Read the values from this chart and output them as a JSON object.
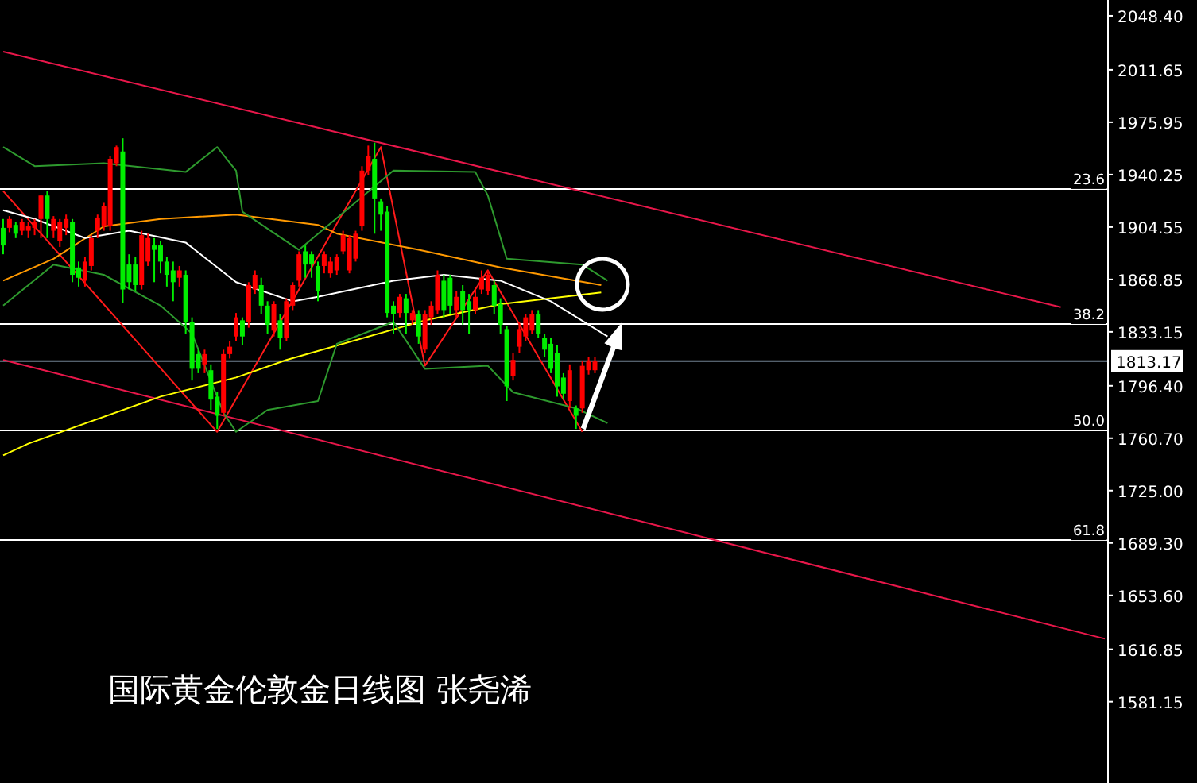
{
  "chart_data": {
    "type": "candlestick",
    "title": "国际黄金伦敦金日线图 张尧浠",
    "categories": [
      null,
      null,
      null,
      null,
      null,
      null,
      null,
      null,
      null,
      null,
      null,
      null,
      null,
      null,
      null,
      null,
      null,
      null,
      null,
      null,
      null,
      null,
      null,
      null,
      null,
      null,
      null,
      null,
      null,
      null,
      null,
      null,
      null,
      null,
      null,
      null,
      null,
      null,
      null,
      null,
      null,
      null,
      null,
      null,
      null,
      null,
      null,
      null,
      null,
      null,
      null,
      null,
      null,
      null,
      null,
      null,
      null,
      null,
      null,
      null,
      null,
      null,
      null,
      null,
      null,
      null,
      null,
      null,
      null,
      null,
      null,
      null,
      null,
      null,
      null,
      null,
      null,
      null,
      null,
      null,
      null,
      null,
      null,
      null,
      null,
      null,
      null,
      null,
      null,
      null,
      null,
      null,
      null,
      null,
      null,
      null,
      null,
      null,
      null,
      null,
      null,
      null,
      null,
      null,
      null,
      null,
      null,
      null,
      null,
      null,
      null,
      null,
      null,
      null,
      null,
      null,
      null,
      null,
      null,
      null,
      null,
      null,
      null,
      null,
      null,
      null,
      null,
      null,
      null,
      null,
      null,
      null,
      null,
      null,
      null,
      null,
      null,
      null,
      null,
      null,
      null,
      null,
      null,
      null,
      null,
      null,
      null,
      null,
      null,
      null,
      null,
      null,
      null,
      null,
      null,
      null,
      null,
      null,
      null,
      null,
      null,
      null,
      null,
      null,
      null,
      null,
      null,
      null,
      null,
      null,
      null,
      null,
      null,
      null,
      null,
      null
    ],
    "ohlc": [
      [
        1904,
        1910,
        1886,
        1892
      ],
      [
        1904,
        1912,
        1901,
        1910
      ],
      [
        1906,
        1908,
        1897,
        1900
      ],
      [
        1902,
        1910,
        1899,
        1908
      ],
      [
        1902,
        1908,
        1897,
        1905
      ],
      [
        1904,
        1910,
        1899,
        1908
      ],
      [
        1910,
        1926,
        1897,
        1926
      ],
      [
        1926,
        1929,
        1897,
        1910
      ],
      [
        1902,
        1912,
        1897,
        1910
      ],
      [
        1895,
        1910,
        1891,
        1908
      ],
      [
        1904,
        1913,
        1899,
        1910
      ],
      [
        1908,
        1910,
        1867,
        1872
      ],
      [
        1877,
        1881,
        1864,
        1870
      ],
      [
        1868,
        1884,
        1864,
        1881
      ],
      [
        1878,
        1899,
        1875,
        1897
      ],
      [
        1902,
        1913,
        1897,
        1911
      ],
      [
        1905,
        1921,
        1902,
        1919
      ],
      [
        1905,
        1953,
        1902,
        1951
      ],
      [
        1948,
        1960,
        1946,
        1959
      ],
      [
        1956,
        1965,
        1853,
        1862
      ],
      [
        1879,
        1886,
        1862,
        1867
      ],
      [
        1879,
        1884,
        1861,
        1865
      ],
      [
        1865,
        1902,
        1862,
        1899
      ],
      [
        1881,
        1900,
        1878,
        1897
      ],
      [
        1892,
        1897,
        1867,
        1889
      ],
      [
        1892,
        1895,
        1873,
        1881
      ],
      [
        1881,
        1884,
        1864,
        1872
      ],
      [
        1875,
        1881,
        1854,
        1867
      ],
      [
        1870,
        1878,
        1864,
        1875
      ],
      [
        1872,
        1875,
        1832,
        1840
      ],
      [
        1840,
        1843,
        1800,
        1808
      ],
      [
        1818,
        1821,
        1805,
        1808
      ],
      [
        1811,
        1821,
        1805,
        1818
      ],
      [
        1807,
        1811,
        1780,
        1787
      ],
      [
        1789,
        1792,
        1767,
        1776
      ],
      [
        1778,
        1821,
        1776,
        1818
      ],
      [
        1818,
        1827,
        1815,
        1823
      ],
      [
        1830,
        1846,
        1827,
        1843
      ],
      [
        1841,
        1843,
        1824,
        1830
      ],
      [
        1840,
        1867,
        1836,
        1865
      ],
      [
        1862,
        1875,
        1859,
        1872
      ],
      [
        1865,
        1870,
        1845,
        1851
      ],
      [
        1851,
        1854,
        1832,
        1838
      ],
      [
        1834,
        1854,
        1830,
        1852
      ],
      [
        1841,
        1845,
        1821,
        1829
      ],
      [
        1829,
        1856,
        1827,
        1854
      ],
      [
        1851,
        1867,
        1848,
        1865
      ],
      [
        1868,
        1888,
        1864,
        1886
      ],
      [
        1888,
        1892,
        1870,
        1879
      ],
      [
        1886,
        1888,
        1870,
        1879
      ],
      [
        1878,
        1881,
        1854,
        1861
      ],
      [
        1878,
        1888,
        1873,
        1886
      ],
      [
        1873,
        1884,
        1870,
        1881
      ],
      [
        1875,
        1886,
        1872,
        1884
      ],
      [
        1888,
        1902,
        1886,
        1899
      ],
      [
        1875,
        1899,
        1873,
        1897
      ],
      [
        1883,
        1902,
        1881,
        1900
      ],
      [
        1905,
        1946,
        1902,
        1943
      ],
      [
        1943,
        1960,
        1940,
        1953
      ],
      [
        1951,
        1962,
        1900,
        1924
      ],
      [
        1922,
        1924,
        1902,
        1913
      ],
      [
        1915,
        1919,
        1843,
        1846
      ],
      [
        1851,
        1854,
        1832,
        1845
      ],
      [
        1846,
        1859,
        1843,
        1857
      ],
      [
        1856,
        1859,
        1832,
        1846
      ],
      [
        1841,
        1848,
        1838,
        1846
      ],
      [
        1845,
        1848,
        1825,
        1830
      ],
      [
        1821,
        1848,
        1819,
        1845
      ],
      [
        1843,
        1854,
        1838,
        1851
      ],
      [
        1848,
        1875,
        1845,
        1872
      ],
      [
        1868,
        1872,
        1843,
        1848
      ],
      [
        1870,
        1872,
        1845,
        1851
      ],
      [
        1848,
        1861,
        1843,
        1857
      ],
      [
        1861,
        1865,
        1838,
        1848
      ],
      [
        1854,
        1859,
        1832,
        1848
      ],
      [
        1848,
        1862,
        1845,
        1857
      ],
      [
        1862,
        1875,
        1859,
        1870
      ],
      [
        1861,
        1875,
        1858,
        1872
      ],
      [
        1865,
        1868,
        1845,
        1851
      ],
      [
        1852,
        1856,
        1832,
        1838
      ],
      [
        1835,
        1837,
        1786,
        1796
      ],
      [
        1803,
        1819,
        1800,
        1814
      ],
      [
        1823,
        1840,
        1819,
        1835
      ],
      [
        1830,
        1845,
        1827,
        1843
      ],
      [
        1834,
        1848,
        1832,
        1845
      ],
      [
        1845,
        1848,
        1829,
        1832
      ],
      [
        1829,
        1832,
        1816,
        1821
      ],
      [
        1825,
        1829,
        1805,
        1808
      ],
      [
        1819,
        1824,
        1789,
        1796
      ],
      [
        1802,
        1805,
        1787,
        1791
      ],
      [
        1786,
        1811,
        1781,
        1807
      ],
      [
        1781,
        1783,
        1767,
        1776
      ],
      [
        1781,
        1813,
        1778,
        1810
      ],
      [
        1807,
        1816,
        1804,
        1813
      ],
      [
        1807,
        1816,
        1805,
        1813
      ],
      null,
      null,
      null,
      null,
      null,
      null,
      null,
      null,
      null,
      null,
      null,
      null,
      null,
      null,
      null,
      null,
      null,
      null,
      null,
      null,
      null,
      null,
      null,
      null,
      null,
      null,
      null,
      null,
      null,
      null,
      null,
      null,
      null,
      null,
      null,
      null,
      null,
      null,
      null,
      null,
      null,
      null,
      null,
      null,
      null,
      null,
      null,
      null,
      null,
      null,
      null,
      null,
      null,
      null,
      null,
      null,
      null,
      null,
      null,
      null,
      null,
      null,
      null,
      null,
      null,
      null,
      null,
      null,
      null,
      null,
      null,
      null,
      null,
      null,
      null,
      null,
      null,
      null,
      null,
      null,
      null
    ],
    "series": [
      {
        "type": "line",
        "color": "#e8174a",
        "values": [
          2024,
          null,
          null,
          null,
          null,
          null,
          null,
          null,
          null,
          null,
          null,
          null,
          null,
          null,
          null,
          null,
          null,
          null,
          null,
          null,
          null,
          null,
          null,
          null,
          null,
          null,
          null,
          null,
          null,
          null,
          null,
          null,
          null,
          null,
          null,
          null,
          null,
          null,
          null,
          null,
          null,
          null,
          null,
          null,
          null,
          null,
          null,
          null,
          null,
          null,
          null,
          null,
          null,
          null,
          null,
          null,
          null,
          null,
          null,
          null,
          null,
          null,
          null,
          null,
          null,
          null,
          null,
          null,
          null,
          null,
          null,
          null,
          null,
          null,
          null,
          null,
          null,
          null,
          null,
          null,
          null,
          null,
          null,
          null,
          null,
          null,
          null,
          null,
          null,
          null,
          null,
          null,
          null,
          null,
          null,
          null,
          null,
          null,
          null,
          null,
          null,
          null,
          null,
          null,
          null,
          null,
          null,
          null,
          null,
          null,
          null,
          null,
          null,
          null,
          null,
          null,
          null,
          null,
          null,
          null,
          null,
          null,
          null,
          null,
          null,
          null,
          null,
          null,
          null,
          null,
          null,
          null,
          null,
          null,
          null,
          null,
          null,
          null,
          null,
          null,
          null,
          null,
          null,
          null,
          null,
          null,
          null,
          null,
          null,
          null,
          null,
          null,
          null,
          null,
          null,
          null,
          null,
          null,
          null,
          null,
          null,
          null,
          null,
          null,
          null,
          null,
          null,
          null,
          1850,
          null,
          null,
          null,
          null,
          null,
          null,
          null
        ]
      },
      {
        "type": "line",
        "color": "#e8174a",
        "values": [
          1814,
          null,
          null,
          null,
          null,
          null,
          null,
          null,
          null,
          null,
          null,
          null,
          null,
          null,
          null,
          null,
          null,
          null,
          null,
          null,
          null,
          null,
          null,
          null,
          null,
          null,
          null,
          null,
          null,
          null,
          null,
          null,
          null,
          null,
          null,
          null,
          null,
          null,
          null,
          null,
          null,
          null,
          null,
          null,
          null,
          null,
          null,
          null,
          null,
          null,
          null,
          null,
          null,
          null,
          null,
          null,
          null,
          null,
          null,
          null,
          null,
          null,
          null,
          null,
          null,
          null,
          null,
          null,
          null,
          null,
          null,
          null,
          null,
          null,
          null,
          null,
          null,
          null,
          null,
          null,
          null,
          null,
          null,
          null,
          null,
          null,
          null,
          null,
          null,
          null,
          null,
          null,
          null,
          null,
          null,
          null,
          null,
          null,
          null,
          null,
          null,
          null,
          null,
          null,
          null,
          null,
          null,
          null,
          null,
          null,
          null,
          null,
          null,
          null,
          null,
          null,
          null,
          null,
          null,
          null,
          null,
          null,
          null,
          null,
          null,
          null,
          null,
          null,
          null,
          null,
          null,
          null,
          null,
          null,
          null,
          null,
          null,
          null,
          null,
          null,
          null,
          null,
          null,
          null,
          null,
          null,
          null,
          null,
          null,
          null,
          null,
          null,
          null,
          null,
          null,
          null,
          null,
          null,
          null,
          null,
          null,
          null,
          null,
          null,
          null,
          null,
          null,
          null,
          null,
          null,
          null,
          null,
          null,
          null,
          null,
          1624
        ]
      },
      {
        "type": "line",
        "color": "#ff1a1a",
        "values": [
          1929,
          null,
          null,
          null,
          null,
          null,
          null,
          null,
          null,
          null,
          null,
          null,
          null,
          null,
          null,
          null,
          null,
          null,
          null,
          null,
          null,
          null,
          null,
          null,
          null,
          null,
          null,
          null,
          null,
          null,
          null,
          null,
          null,
          null,
          1765,
          null,
          null,
          null,
          null,
          null,
          null,
          null,
          null,
          null,
          null,
          null,
          null,
          null,
          null,
          null,
          null,
          null,
          null,
          null,
          null,
          null,
          null,
          null,
          null,
          null,
          1959,
          null,
          null,
          null,
          null,
          null,
          null,
          1810,
          null,
          null,
          null,
          null,
          null,
          null,
          null,
          null,
          null,
          1875,
          null,
          null,
          null,
          null,
          null,
          null,
          null,
          null,
          null,
          null,
          null,
          null,
          null,
          null,
          1765,
          null,
          null,
          null,
          null,
          null,
          null,
          null,
          null,
          null,
          null,
          null,
          null,
          null,
          null,
          null,
          null,
          null,
          null,
          null,
          null,
          null,
          null,
          null,
          null,
          null,
          null,
          null,
          null,
          null,
          null,
          null,
          null,
          null,
          null,
          null,
          null,
          null,
          null,
          null,
          null,
          null,
          null,
          null,
          null,
          null,
          null,
          null,
          null,
          null,
          null,
          null,
          null,
          null,
          null,
          null,
          null,
          null,
          null,
          null,
          null,
          null,
          null,
          null,
          null,
          null,
          null,
          null,
          null,
          null,
          null,
          null,
          null,
          null,
          null,
          null,
          null,
          null,
          null,
          null,
          null,
          null,
          null,
          null
        ]
      },
      {
        "type": "line",
        "color": "#ffff00",
        "values": [
          1749,
          null,
          null,
          null,
          1757,
          null,
          null,
          null,
          null,
          null,
          null,
          null,
          null,
          null,
          null,
          null,
          null,
          null,
          null,
          null,
          null,
          null,
          null,
          null,
          null,
          1789,
          null,
          null,
          null,
          null,
          null,
          null,
          null,
          null,
          null,
          null,
          null,
          1802,
          null,
          null,
          null,
          null,
          null,
          null,
          null,
          1814,
          null,
          null,
          null,
          null,
          null,
          null,
          null,
          null,
          null,
          null,
          null,
          null,
          null,
          null,
          null,
          null,
          null,
          null,
          null,
          null,
          null,
          1841,
          null,
          null,
          null,
          null,
          null,
          null,
          null,
          null,
          null,
          null,
          null,
          1852,
          null,
          null,
          null,
          null,
          null,
          null,
          null,
          null,
          null,
          null,
          null,
          null,
          null,
          null,
          null,
          1860,
          null,
          null,
          null,
          null,
          null,
          null,
          null,
          null,
          null,
          null,
          null,
          null,
          null,
          null,
          null,
          null,
          null,
          null,
          null,
          null,
          null,
          null,
          null,
          null,
          null,
          null,
          null,
          null,
          null,
          null,
          null,
          null,
          null,
          null,
          null,
          null,
          null,
          null,
          null,
          null,
          null,
          null,
          null,
          null,
          null,
          null,
          null,
          null,
          null,
          null,
          null,
          null,
          null,
          null,
          null,
          null,
          null,
          null,
          null,
          null,
          null,
          null,
          null,
          null,
          null,
          null,
          null,
          null,
          null,
          null,
          null,
          null,
          null,
          null,
          null,
          null,
          null,
          null,
          null,
          null
        ]
      },
      {
        "type": "line",
        "color": "#ff9900",
        "values": [
          1868,
          null,
          null,
          null,
          null,
          null,
          null,
          null,
          1883,
          null,
          null,
          null,
          null,
          null,
          null,
          null,
          1905,
          null,
          null,
          null,
          null,
          null,
          null,
          null,
          null,
          1910,
          null,
          null,
          null,
          null,
          null,
          null,
          null,
          null,
          null,
          null,
          null,
          1913,
          null,
          null,
          null,
          null,
          null,
          null,
          null,
          null,
          null,
          null,
          null,
          null,
          1906,
          null,
          null,
          1900,
          null,
          null,
          null,
          null,
          null,
          null,
          null,
          null,
          null,
          null,
          null,
          null,
          1889,
          null,
          null,
          null,
          null,
          null,
          null,
          null,
          null,
          null,
          null,
          null,
          null,
          1877,
          null,
          null,
          null,
          null,
          null,
          null,
          null,
          null,
          null,
          null,
          null,
          null,
          null,
          null,
          null,
          1865,
          null,
          null,
          null,
          null,
          null,
          null,
          null,
          null,
          null,
          null,
          null,
          null,
          null,
          null,
          null,
          null,
          null,
          null,
          null,
          null,
          null,
          null,
          null,
          null,
          null,
          null,
          null,
          null,
          null,
          null,
          null,
          null,
          null,
          null,
          null,
          null,
          null,
          null,
          null,
          null,
          null,
          null,
          null,
          null,
          null,
          null,
          null,
          null,
          null,
          null,
          null,
          null,
          null,
          null,
          null,
          null,
          null,
          null,
          null,
          null,
          null,
          null,
          null,
          null,
          null,
          null,
          null,
          null,
          null,
          null,
          null,
          null,
          null,
          null,
          null,
          null,
          null,
          null,
          null,
          null
        ]
      },
      {
        "type": "line",
        "color": "#ffffff",
        "values": [
          1916,
          null,
          null,
          null,
          null,
          1910,
          null,
          null,
          null,
          null,
          null,
          null,
          null,
          1897,
          null,
          null,
          null,
          null,
          null,
          null,
          1902,
          null,
          null,
          null,
          null,
          null,
          null,
          null,
          null,
          1894,
          null,
          null,
          null,
          null,
          null,
          null,
          null,
          1867,
          null,
          null,
          null,
          null,
          null,
          null,
          null,
          null,
          1854,
          null,
          null,
          null,
          1857,
          null,
          null,
          null,
          null,
          null,
          null,
          null,
          null,
          null,
          null,
          null,
          1868,
          null,
          null,
          null,
          null,
          null,
          null,
          null,
          1872,
          null,
          null,
          null,
          null,
          null,
          null,
          null,
          null,
          1868,
          null,
          null,
          null,
          null,
          null,
          null,
          null,
          1854,
          null,
          null,
          null,
          null,
          null,
          null,
          null,
          null,
          1830,
          null,
          null,
          null,
          null,
          null,
          null,
          null,
          null,
          null,
          null,
          null,
          null,
          null,
          null,
          null,
          null,
          null,
          null,
          null,
          null,
          null,
          null,
          null,
          null,
          null,
          null,
          null,
          null,
          null,
          null,
          null,
          null,
          null,
          null,
          null,
          null,
          null,
          null,
          null,
          null,
          null,
          null,
          null,
          null,
          null,
          null,
          null,
          null,
          null,
          null,
          null,
          null,
          null,
          null,
          null,
          null,
          null,
          null,
          null,
          null,
          null,
          null,
          null,
          null,
          null,
          null,
          null,
          null,
          null,
          null,
          null,
          null,
          null,
          null,
          null,
          null,
          null,
          null,
          null
        ]
      },
      {
        "type": "line",
        "color": "#2e9a2e",
        "values": [
          1959,
          null,
          null,
          null,
          null,
          1946,
          null,
          null,
          null,
          null,
          null,
          null,
          null,
          null,
          null,
          null,
          1948,
          null,
          null,
          null,
          null,
          null,
          null,
          null,
          null,
          null,
          null,
          null,
          null,
          1942,
          null,
          null,
          null,
          null,
          1959,
          null,
          null,
          1943,
          1915,
          null,
          null,
          null,
          null,
          null,
          null,
          null,
          null,
          1889,
          null,
          null,
          null,
          null,
          null,
          null,
          null,
          null,
          null,
          null,
          null,
          null,
          null,
          null,
          1943,
          null,
          null,
          null,
          null,
          null,
          null,
          null,
          null,
          null,
          null,
          null,
          null,
          1942,
          null,
          1926,
          null,
          null,
          1883,
          null,
          null,
          null,
          null,
          null,
          null,
          null,
          null,
          null,
          null,
          null,
          1879,
          null,
          null,
          null,
          1868,
          null,
          null,
          null,
          null,
          null,
          null,
          null,
          null,
          null,
          null,
          null,
          null,
          null,
          null,
          null,
          null,
          null,
          null,
          null,
          null,
          null,
          null,
          null,
          null,
          null,
          null,
          null,
          null,
          null,
          null,
          null,
          null,
          null,
          null,
          null,
          null,
          null,
          null,
          null,
          null,
          null,
          null,
          null,
          null,
          null,
          null,
          null,
          null,
          null,
          null,
          null,
          null,
          null,
          null,
          null,
          null,
          null,
          null,
          null,
          null,
          null,
          null,
          null,
          null,
          null,
          null,
          null,
          null,
          null,
          null,
          null,
          null,
          null,
          null,
          null,
          null,
          null,
          null,
          null
        ]
      },
      {
        "type": "line",
        "color": "#2e9a2e",
        "values": [
          1851,
          null,
          null,
          null,
          null,
          null,
          null,
          null,
          1879,
          null,
          null,
          null,
          null,
          null,
          null,
          null,
          1872,
          null,
          null,
          null,
          null,
          null,
          null,
          null,
          null,
          1851,
          null,
          null,
          null,
          null,
          1832,
          null,
          null,
          null,
          null,
          1778,
          null,
          1765,
          null,
          null,
          null,
          null,
          1780,
          null,
          null,
          null,
          null,
          null,
          null,
          null,
          1786,
          null,
          null,
          1825,
          null,
          null,
          null,
          null,
          null,
          null,
          null,
          null,
          1840,
          null,
          null,
          null,
          null,
          1808,
          null,
          null,
          null,
          null,
          null,
          null,
          null,
          null,
          null,
          1810,
          null,
          null,
          null,
          1792,
          null,
          null,
          null,
          null,
          null,
          null,
          null,
          null,
          null,
          1781,
          null,
          null,
          null,
          null,
          1771,
          null,
          null,
          null,
          null,
          null,
          null,
          null,
          null,
          null,
          null,
          null,
          null,
          null,
          null,
          null,
          null,
          null,
          null,
          null,
          null,
          null,
          null,
          null,
          null,
          null,
          null,
          null,
          null,
          null,
          null,
          null,
          null,
          null,
          null,
          null,
          null,
          null,
          null,
          null,
          null,
          null,
          null,
          null,
          null,
          null,
          null,
          null,
          null,
          null,
          null,
          null,
          null,
          null,
          null,
          null,
          null,
          null,
          null,
          null,
          null,
          null,
          null,
          null,
          null,
          null,
          null,
          null,
          null,
          null,
          null,
          null,
          null,
          null,
          null,
          null,
          null,
          null,
          null,
          null
        ]
      }
    ],
    "ylim": [
      1525.8,
      2059.2
    ],
    "yticks": [
      {
        "value": 2048.4,
        "label": "2048.40"
      },
      2011.65,
      1975.95,
      1940.25,
      1904.55,
      1868.85,
      1833.15,
      {
        "value": 1796.4,
        "label": "1796.40"
      },
      {
        "value": 1760.7,
        "label": "1760.70"
      },
      {
        "value": 1725,
        "label": "1725.00"
      },
      {
        "value": 1689.3,
        "label": "1689.30"
      },
      {
        "value": 1653.6,
        "label": "1653.60"
      },
      1616.85,
      1581.15
    ],
    "ref_lines": [
      {
        "axis": "y",
        "value": 1930.5,
        "color": "#ffffff"
      },
      {
        "axis": "y",
        "value": 1838.5,
        "color": "#ffffff"
      },
      {
        "axis": "y",
        "value": 1766,
        "color": "#ffffff"
      },
      {
        "axis": "y",
        "value": 1691.3,
        "color": "#ffffff"
      },
      {
        "axis": "y",
        "value": 1813.17,
        "label": "1813.17",
        "color": "#708090"
      }
    ],
    "annotations": [
      {
        "text": "23.6",
        "y": 1930.5
      },
      {
        "text": "38.2",
        "y": 1838.5
      },
      {
        "text": "50.0",
        "y": 1766
      },
      {
        "text": "61.8",
        "y": 1691.3
      }
    ],
    "tick_labels": "y",
    "grid": false
  }
}
